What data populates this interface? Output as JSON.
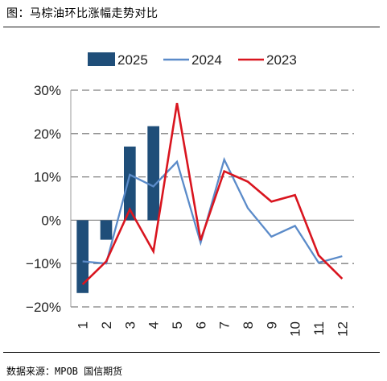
{
  "header": {
    "title": "图：马棕油环比涨幅走势对比"
  },
  "footer": {
    "source": "数据来源：MPOB 国信期货"
  },
  "chart_data": {
    "type": "bar+line",
    "categories": [
      "1",
      "2",
      "3",
      "4",
      "5",
      "6",
      "7",
      "8",
      "9",
      "10",
      "11",
      "12"
    ],
    "ylim": [
      -20,
      30
    ],
    "yticks": [
      -20,
      -10,
      0,
      10,
      20,
      30
    ],
    "ytick_labels": [
      "−20%",
      "−10%",
      "0%",
      "10%",
      "20%",
      "30%"
    ],
    "grid": "horizontal dashed",
    "legend_position": "top",
    "series": [
      {
        "name": "2025",
        "kind": "bar",
        "color": "#1f4e79",
        "values": [
          -16.8,
          -4.5,
          17.0,
          21.7,
          null,
          null,
          null,
          null,
          null,
          null,
          null,
          null
        ]
      },
      {
        "name": "2024",
        "kind": "line",
        "color": "#5b8bc9",
        "values": [
          -9.5,
          -10.0,
          10.5,
          7.8,
          13.5,
          -5.2,
          14.0,
          2.8,
          -3.8,
          -1.3,
          -9.8,
          -8.3
        ]
      },
      {
        "name": "2023",
        "kind": "line",
        "color": "#d9151f",
        "values": [
          -14.8,
          -9.5,
          2.5,
          -7.2,
          27.0,
          -4.6,
          11.3,
          8.9,
          4.3,
          5.8,
          -8.1,
          -13.5
        ]
      }
    ]
  }
}
